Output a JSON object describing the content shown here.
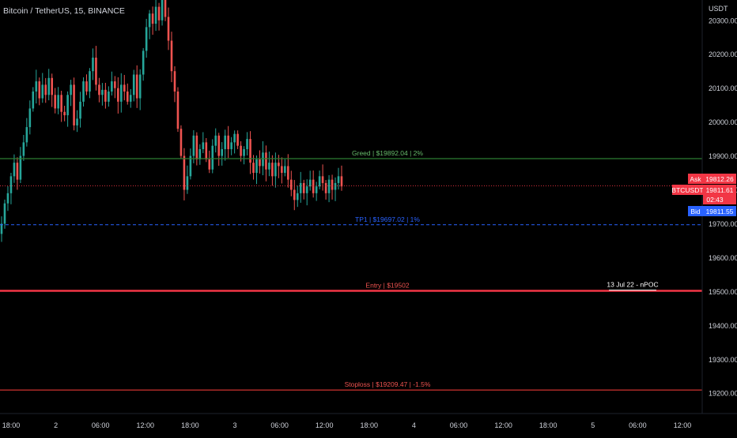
{
  "header": {
    "symbol_title": "Bitcoin / TetherUS, 15, BINANCE"
  },
  "price_axis": {
    "unit": "USDT",
    "ticks": [
      "20300.00",
      "20200.00",
      "20100.00",
      "20000.00",
      "19900.00",
      "19800.00",
      "19700.00",
      "19600.00",
      "19500.00",
      "19400.00",
      "19300.00",
      "19200.00"
    ],
    "tick_values": [
      20300,
      20200,
      20100,
      20000,
      19900,
      19800,
      19700,
      19600,
      19500,
      19400,
      19300,
      19200
    ]
  },
  "time_axis": {
    "ticks": [
      "18:00",
      "2",
      "06:00",
      "12:00",
      "18:00",
      "3",
      "06:00",
      "12:00",
      "18:00",
      "4",
      "06:00",
      "12:00",
      "18:00",
      "5",
      "06:00",
      "12:00"
    ]
  },
  "price_badges": {
    "ask_label": "Ask",
    "ask_price": "19812.26",
    "last_label": "BTCUSDT",
    "last_price": "19811.61",
    "countdown": "02:43",
    "bid_label": "Bid",
    "bid_price": "19811.55"
  },
  "colors": {
    "background": "#000000",
    "candle_up": "#26a69a",
    "candle_down": "#ef5350",
    "greed_line": "#2e7d32",
    "tp1_line": "#2962ff",
    "entry_line": "#f23645",
    "stoploss_line": "#e53935",
    "npoc_line": "#ffffff",
    "ask_badge": "#f23645",
    "bid_badge": "#2962ff"
  },
  "chart_data": {
    "type": "candlestick",
    "symbol": "BTCUSDT",
    "interval": "15",
    "ylim": [
      19140,
      20360
    ],
    "current_price": 19811.61,
    "levels": [
      {
        "label": "Greed | $19892.04 | 2%",
        "price": 19892.04,
        "style": "solid"
      },
      {
        "label": "TP1 | $19697.02 | 1%",
        "price": 19697.02,
        "style": "dashed"
      },
      {
        "label": "Entry | $19502",
        "price": 19502,
        "style": "solid-thick"
      },
      {
        "label": "Stoploss | $19209.47 | -1.5%",
        "price": 19209.47,
        "style": "solid"
      },
      {
        "label": "13 Jul 22 - nPOC",
        "price": 19504,
        "style": "solid"
      }
    ],
    "series": [
      {
        "close": [
          19700,
          19760,
          19790,
          19840,
          19880,
          19830,
          19900,
          19940,
          19985,
          20040,
          20090,
          20120,
          20070,
          20110,
          20080,
          20130,
          20080,
          20040,
          20080,
          20030,
          20020,
          20080,
          20110,
          19990,
          20010,
          20060,
          20120,
          20090,
          20150,
          20190,
          20110,
          20080,
          20095,
          20060,
          20090,
          20120,
          20100,
          20060,
          20110,
          20090,
          20060,
          20080,
          20140,
          20070,
          20140,
          20210,
          20280,
          20320,
          20290,
          20340,
          20300,
          20370,
          20310,
          20240,
          20150,
          20090,
          19980,
          19900,
          19800,
          19840,
          19900,
          19960,
          19890,
          19920,
          19940,
          19890,
          19860,
          19930,
          19960,
          19900,
          19920,
          19960,
          19920,
          19940,
          19965,
          19930,
          19900,
          19920,
          19950,
          19880,
          19850,
          19890,
          19870,
          19910,
          19860,
          19880,
          19840,
          19880,
          19870,
          19850,
          19870,
          19830,
          19800,
          19770,
          19790,
          19820,
          19790,
          19810,
          19830,
          19790,
          19810,
          19840,
          19820,
          19790,
          19830,
          19800,
          19820,
          19840,
          19810
        ]
      }
    ]
  }
}
